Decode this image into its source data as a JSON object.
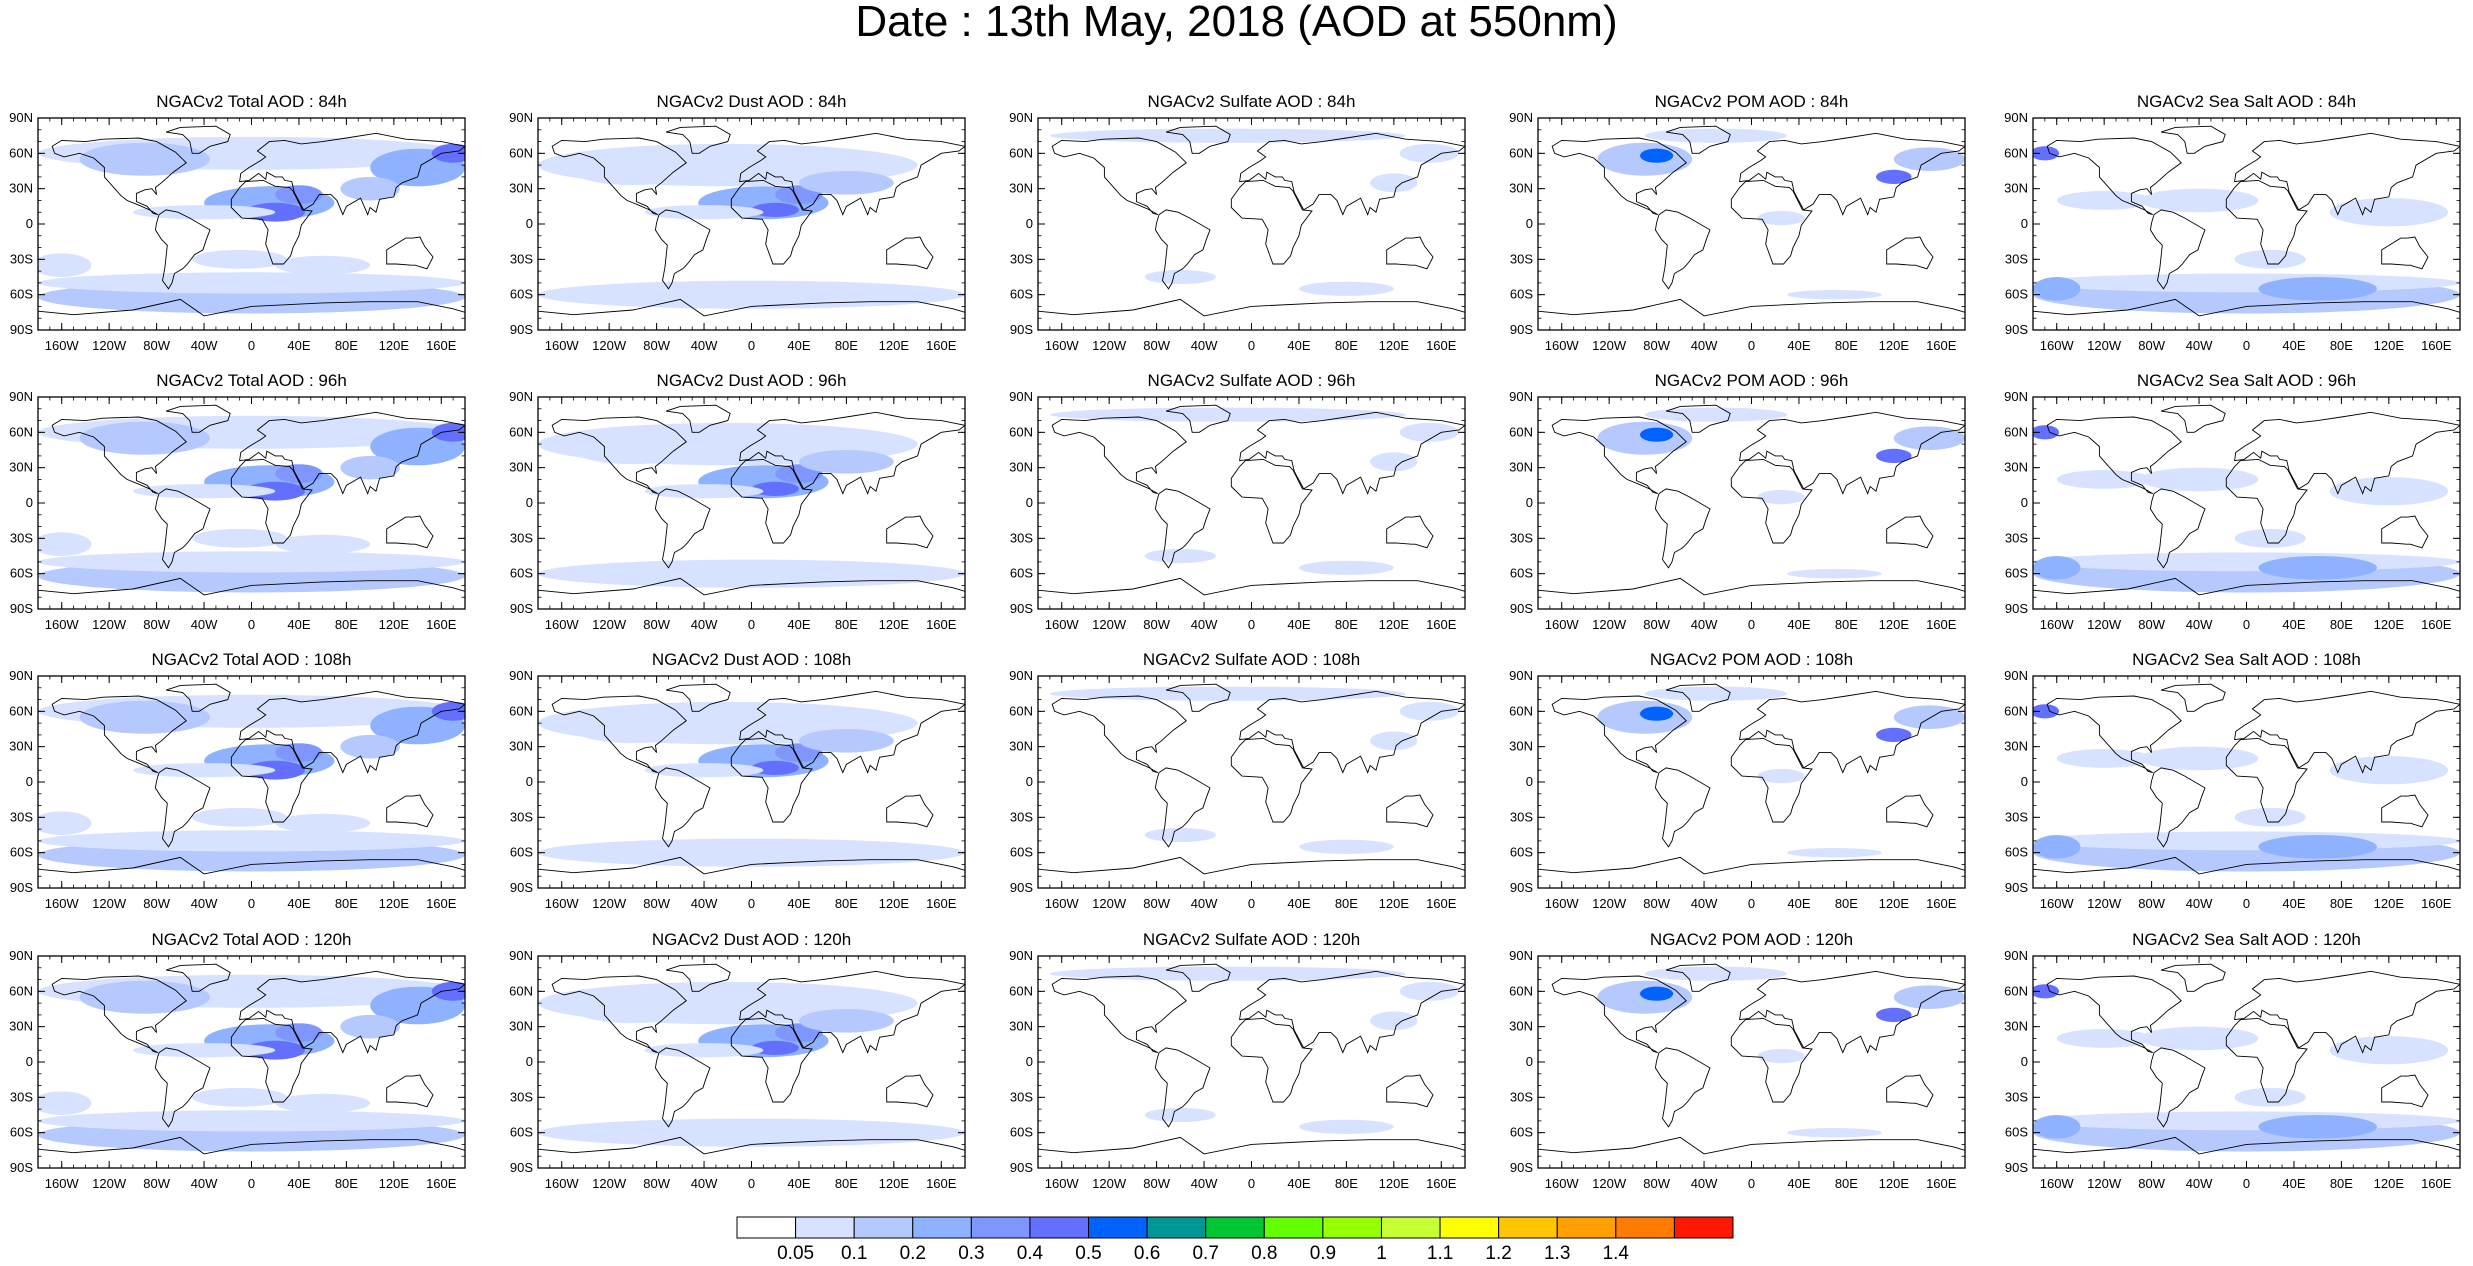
{
  "figure": {
    "title": "Date : 13th May, 2018 (AOD at 550nm)"
  },
  "axes": {
    "lat_ticks": [
      "90N",
      "60N",
      "30N",
      "0",
      "30S",
      "60S",
      "90S"
    ],
    "lon_ticks": [
      "160W",
      "120W",
      "80W",
      "40W",
      "0",
      "40E",
      "80E",
      "120E",
      "160E"
    ],
    "lat_values": [
      90,
      60,
      30,
      0,
      -30,
      -60,
      -90
    ],
    "lon_values": [
      -160,
      -120,
      -80,
      -40,
      0,
      40,
      80,
      120,
      160
    ],
    "lon_range": [
      -180,
      180
    ],
    "lat_range": [
      -90,
      90
    ],
    "projection": "cylindrical-equidistant"
  },
  "rows": [
    "84h",
    "96h",
    "108h",
    "120h"
  ],
  "columns": [
    "Total",
    "Dust",
    "Sulfate",
    "POM",
    "Sea Salt"
  ],
  "panels": [
    {
      "title": "NGACv2 Total AOD : 84h",
      "species": "total"
    },
    {
      "title": "NGACv2 Dust AOD : 84h",
      "species": "dust"
    },
    {
      "title": "NGACv2 Sulfate AOD : 84h",
      "species": "sulfate"
    },
    {
      "title": "NGACv2 POM AOD : 84h",
      "species": "pom"
    },
    {
      "title": "NGACv2 Sea Salt AOD : 84h",
      "species": "seasalt"
    },
    {
      "title": "NGACv2 Total AOD : 96h",
      "species": "total"
    },
    {
      "title": "NGACv2 Dust AOD : 96h",
      "species": "dust"
    },
    {
      "title": "NGACv2 Sulfate AOD : 96h",
      "species": "sulfate"
    },
    {
      "title": "NGACv2 POM AOD : 96h",
      "species": "pom"
    },
    {
      "title": "NGACv2 Sea Salt AOD : 96h",
      "species": "seasalt"
    },
    {
      "title": "NGACv2 Total AOD : 108h",
      "species": "total"
    },
    {
      "title": "NGACv2 Dust AOD : 108h",
      "species": "dust"
    },
    {
      "title": "NGACv2 Sulfate AOD : 108h",
      "species": "sulfate"
    },
    {
      "title": "NGACv2 POM AOD : 108h",
      "species": "pom"
    },
    {
      "title": "NGACv2 Sea Salt AOD : 108h",
      "species": "seasalt"
    },
    {
      "title": "NGACv2 Total AOD : 120h",
      "species": "total"
    },
    {
      "title": "NGACv2 Dust AOD : 120h",
      "species": "dust"
    },
    {
      "title": "NGACv2 Sulfate AOD : 120h",
      "species": "sulfate"
    },
    {
      "title": "NGACv2 POM AOD : 120h",
      "species": "pom"
    },
    {
      "title": "NGACv2 Sea Salt  AOD : 120h",
      "species": "seasalt"
    }
  ],
  "colorbar": {
    "labels": [
      "0.05",
      "0.1",
      "0.2",
      "0.3",
      "0.4",
      "0.5",
      "0.6",
      "0.7",
      "0.8",
      "0.9",
      "1",
      "1.1",
      "1.2",
      "1.3",
      "1.4"
    ],
    "colors": [
      "#ffffff",
      "#d6e2ff",
      "#b5c9ff",
      "#8eb2ff",
      "#7f96ff",
      "#6370ff",
      "#0063ff",
      "#009696",
      "#00c633",
      "#63ff00",
      "#96ff00",
      "#c6ff33",
      "#ffff00",
      "#ffc600",
      "#ffa000",
      "#ff7c00",
      "#ff1900"
    ]
  }
}
